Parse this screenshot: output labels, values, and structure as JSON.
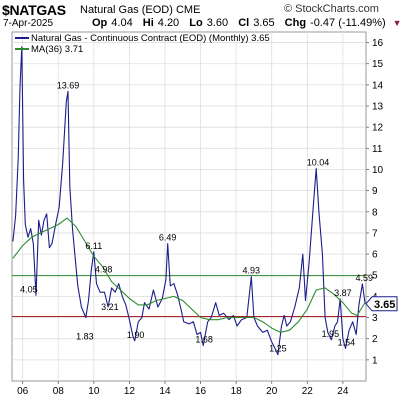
{
  "header": {
    "symbol": "$NATGAS",
    "name": "Natural Gas (EOD)",
    "exchange": "CME",
    "brand": "© StockCharts.com",
    "date": "7-Apr-2025",
    "open_label": "Op",
    "open": "4.04",
    "high_label": "Hi",
    "high": "4.20",
    "low_label": "Lo",
    "low": "3.60",
    "close_label": "Cl",
    "close": "3.65",
    "change_label": "Chg",
    "change": "-0.47 (-11.49%)",
    "change_icon": "down-triangle-icon"
  },
  "colors": {
    "price": "#1c1c8c",
    "ma": "#2e8b2e",
    "hline_green": "#2e8b2e",
    "hline_red": "#b22222",
    "last_price_box": "#1c1c8c"
  },
  "chart_data": {
    "type": "line",
    "title": "Natural Gas - Continuous Contract (EOD) (Monthly) 3.65",
    "legend": [
      {
        "name": "Natural Gas - Continuous Contract (EOD) (Monthly) 3.65",
        "color": "#1c1c8c"
      },
      {
        "name": "MA(36) 3.71",
        "color": "#2e8b2e"
      }
    ],
    "legend_position": "top-left",
    "ylim": [
      0,
      16.5
    ],
    "y_ticks": [
      1,
      2,
      3,
      4,
      5,
      6,
      7,
      8,
      9,
      10,
      11,
      12,
      13,
      14,
      15,
      16
    ],
    "x_range": [
      2005.4,
      2025.3
    ],
    "x_ticks": [
      {
        "x": 2006,
        "label": "06"
      },
      {
        "x": 2008,
        "label": "08"
      },
      {
        "x": 2010,
        "label": "10"
      },
      {
        "x": 2012,
        "label": "12"
      },
      {
        "x": 2014,
        "label": "14"
      },
      {
        "x": 2016,
        "label": "16"
      },
      {
        "x": 2018,
        "label": "18"
      },
      {
        "x": 2020,
        "label": "20"
      },
      {
        "x": 2022,
        "label": "22"
      },
      {
        "x": 2024,
        "label": "24"
      }
    ],
    "grid": true,
    "hlines": [
      {
        "y": 4.98,
        "color": "green"
      },
      {
        "y": 3.05,
        "color": "red"
      }
    ],
    "last_price": 3.65,
    "series": [
      {
        "name": "Natural Gas - Continuous Contract (EOD) (Monthly) 3.65",
        "points": [
          [
            2005.45,
            6.6
          ],
          [
            2005.6,
            7.8
          ],
          [
            2005.75,
            10.5
          ],
          [
            2005.85,
            13.9
          ],
          [
            2005.95,
            15.8
          ],
          [
            2006.05,
            9.5
          ],
          [
            2006.15,
            7.4
          ],
          [
            2006.3,
            6.8
          ],
          [
            2006.45,
            7.2
          ],
          [
            2006.6,
            6.5
          ],
          [
            2006.75,
            4.05
          ],
          [
            2006.9,
            7.6
          ],
          [
            2007.05,
            6.9
          ],
          [
            2007.2,
            7.6
          ],
          [
            2007.35,
            7.9
          ],
          [
            2007.5,
            6.3
          ],
          [
            2007.65,
            6.5
          ],
          [
            2007.85,
            7.4
          ],
          [
            2008.05,
            8.2
          ],
          [
            2008.25,
            10.3
          ],
          [
            2008.45,
            13.2
          ],
          [
            2008.55,
            13.69
          ],
          [
            2008.65,
            9.2
          ],
          [
            2008.8,
            7.2
          ],
          [
            2008.95,
            5.8
          ],
          [
            2009.1,
            4.5
          ],
          [
            2009.3,
            3.5
          ],
          [
            2009.55,
            3.0
          ],
          [
            2009.7,
            3.8
          ],
          [
            2009.85,
            5.2
          ],
          [
            2010.0,
            6.11
          ],
          [
            2010.15,
            4.6
          ],
          [
            2010.35,
            4.2
          ],
          [
            2010.6,
            4.2
          ],
          [
            2010.8,
            3.5
          ],
          [
            2011.0,
            4.4
          ],
          [
            2011.2,
            4.2
          ],
          [
            2011.4,
            4.6
          ],
          [
            2011.6,
            4.0
          ],
          [
            2011.8,
            3.6
          ],
          [
            2012.0,
            2.9
          ],
          [
            2012.2,
            2.1
          ],
          [
            2012.3,
            1.9
          ],
          [
            2012.5,
            2.8
          ],
          [
            2012.7,
            3.0
          ],
          [
            2012.85,
            3.7
          ],
          [
            2013.1,
            3.4
          ],
          [
            2013.35,
            4.3
          ],
          [
            2013.6,
            3.5
          ],
          [
            2013.85,
            3.9
          ],
          [
            2014.05,
            4.8
          ],
          [
            2014.15,
            6.49
          ],
          [
            2014.3,
            4.5
          ],
          [
            2014.5,
            4.6
          ],
          [
            2014.7,
            4.1
          ],
          [
            2014.9,
            3.4
          ],
          [
            2015.05,
            2.8
          ],
          [
            2015.35,
            2.7
          ],
          [
            2015.6,
            2.8
          ],
          [
            2015.8,
            2.2
          ],
          [
            2016.0,
            2.3
          ],
          [
            2016.15,
            1.68
          ],
          [
            2016.4,
            2.8
          ],
          [
            2016.6,
            3.0
          ],
          [
            2016.85,
            3.7
          ],
          [
            2017.05,
            3.1
          ],
          [
            2017.3,
            3.2
          ],
          [
            2017.6,
            2.9
          ],
          [
            2017.85,
            3.1
          ],
          [
            2018.05,
            2.6
          ],
          [
            2018.3,
            2.9
          ],
          [
            2018.6,
            3.0
          ],
          [
            2018.85,
            4.93
          ],
          [
            2019.0,
            3.0
          ],
          [
            2019.2,
            2.6
          ],
          [
            2019.5,
            2.3
          ],
          [
            2019.75,
            2.4
          ],
          [
            2020.0,
            1.85
          ],
          [
            2020.15,
            1.6
          ],
          [
            2020.35,
            1.25
          ],
          [
            2020.55,
            2.6
          ],
          [
            2020.7,
            3.1
          ],
          [
            2020.85,
            2.6
          ],
          [
            2021.05,
            2.8
          ],
          [
            2021.3,
            3.5
          ],
          [
            2021.55,
            4.4
          ],
          [
            2021.75,
            6.0
          ],
          [
            2021.9,
            3.8
          ],
          [
            2022.1,
            5.6
          ],
          [
            2022.35,
            8.4
          ],
          [
            2022.5,
            10.04
          ],
          [
            2022.65,
            8.0
          ],
          [
            2022.85,
            6.0
          ],
          [
            2023.0,
            3.0
          ],
          [
            2023.15,
            2.3
          ],
          [
            2023.35,
            1.95
          ],
          [
            2023.55,
            2.6
          ],
          [
            2023.7,
            2.8
          ],
          [
            2023.85,
            3.87
          ],
          [
            2024.0,
            2.0
          ],
          [
            2024.15,
            1.54
          ],
          [
            2024.35,
            2.4
          ],
          [
            2024.55,
            2.8
          ],
          [
            2024.75,
            2.2
          ],
          [
            2024.9,
            3.6
          ],
          [
            2025.1,
            4.59
          ],
          [
            2025.25,
            3.65
          ]
        ]
      },
      {
        "name": "MA(36) 3.71",
        "points": [
          [
            2005.45,
            5.8
          ],
          [
            2006.0,
            6.4
          ],
          [
            2006.5,
            6.8
          ],
          [
            2007.0,
            7.0
          ],
          [
            2007.5,
            7.2
          ],
          [
            2008.0,
            7.4
          ],
          [
            2008.5,
            7.7
          ],
          [
            2009.0,
            7.3
          ],
          [
            2009.5,
            6.6
          ],
          [
            2010.0,
            5.9
          ],
          [
            2010.5,
            5.4
          ],
          [
            2011.0,
            4.7
          ],
          [
            2011.5,
            4.3
          ],
          [
            2012.0,
            3.9
          ],
          [
            2012.5,
            3.6
          ],
          [
            2013.0,
            3.6
          ],
          [
            2013.5,
            3.8
          ],
          [
            2014.0,
            3.9
          ],
          [
            2014.5,
            4.0
          ],
          [
            2015.0,
            3.8
          ],
          [
            2015.5,
            3.4
          ],
          [
            2016.0,
            3.0
          ],
          [
            2016.5,
            2.9
          ],
          [
            2017.0,
            2.9
          ],
          [
            2017.5,
            3.0
          ],
          [
            2018.0,
            3.0
          ],
          [
            2018.5,
            3.0
          ],
          [
            2019.0,
            3.0
          ],
          [
            2019.5,
            2.8
          ],
          [
            2020.0,
            2.5
          ],
          [
            2020.5,
            2.3
          ],
          [
            2021.0,
            2.4
          ],
          [
            2021.5,
            2.8
          ],
          [
            2022.0,
            3.4
          ],
          [
            2022.5,
            4.3
          ],
          [
            2023.0,
            4.4
          ],
          [
            2023.5,
            4.1
          ],
          [
            2024.0,
            3.7
          ],
          [
            2024.5,
            3.2
          ],
          [
            2024.8,
            3.1
          ],
          [
            2025.25,
            3.71
          ]
        ]
      }
    ],
    "annotations": [
      {
        "x": 2006.35,
        "y": 4.05,
        "text": "4.05"
      },
      {
        "x": 2008.55,
        "y": 13.69,
        "text": "13.69"
      },
      {
        "x": 2010.0,
        "y": 6.11,
        "text": "6.11"
      },
      {
        "x": 2010.55,
        "y": 4.98,
        "text": "4.98"
      },
      {
        "x": 2010.9,
        "y": 3.21,
        "text": "3.21"
      },
      {
        "x": 2009.5,
        "y": 1.83,
        "text": "1.83"
      },
      {
        "x": 2012.35,
        "y": 1.9,
        "text": "1.90"
      },
      {
        "x": 2014.15,
        "y": 6.49,
        "text": "6.49"
      },
      {
        "x": 2016.2,
        "y": 1.68,
        "text": "1.68"
      },
      {
        "x": 2018.85,
        "y": 4.93,
        "text": "4.93"
      },
      {
        "x": 2020.35,
        "y": 1.25,
        "text": "1.25"
      },
      {
        "x": 2022.6,
        "y": 10.04,
        "text": "10.04"
      },
      {
        "x": 2023.3,
        "y": 1.95,
        "text": "1.95"
      },
      {
        "x": 2024.0,
        "y": 3.87,
        "text": "3.87"
      },
      {
        "x": 2024.2,
        "y": 1.54,
        "text": "1.54"
      },
      {
        "x": 2025.2,
        "y": 4.59,
        "text": "4.59"
      }
    ]
  }
}
